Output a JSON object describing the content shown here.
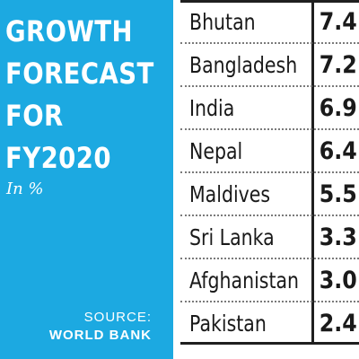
{
  "title_lines": [
    "GROWTH",
    "FORECAST",
    "FOR",
    "FY2020"
  ],
  "unit": "In %",
  "source": {
    "label": "SOURCE:",
    "name": "WORLD BANK"
  },
  "colors": {
    "panel": "#1ca9e1",
    "text_on_panel": "#ffffff",
    "table_text": "#1a1a1a"
  },
  "chart_data": {
    "type": "table",
    "title": "GROWTH FORECAST FOR FY2020",
    "unit": "In %",
    "columns": [
      "Country",
      "Value"
    ],
    "categories": [
      "Bhutan",
      "Bangladesh",
      "India",
      "Nepal",
      "Maldives",
      "Sri Lanka",
      "Afghanistan",
      "Pakistan"
    ],
    "values": [
      7.4,
      7.2,
      6.9,
      6.4,
      5.5,
      3.3,
      3.0,
      2.4
    ],
    "display_values": [
      "7.4",
      "7.2",
      "6.9",
      "6.4",
      "5.5",
      "3.3",
      "3.0",
      "2.4"
    ],
    "source": "WORLD BANK"
  }
}
